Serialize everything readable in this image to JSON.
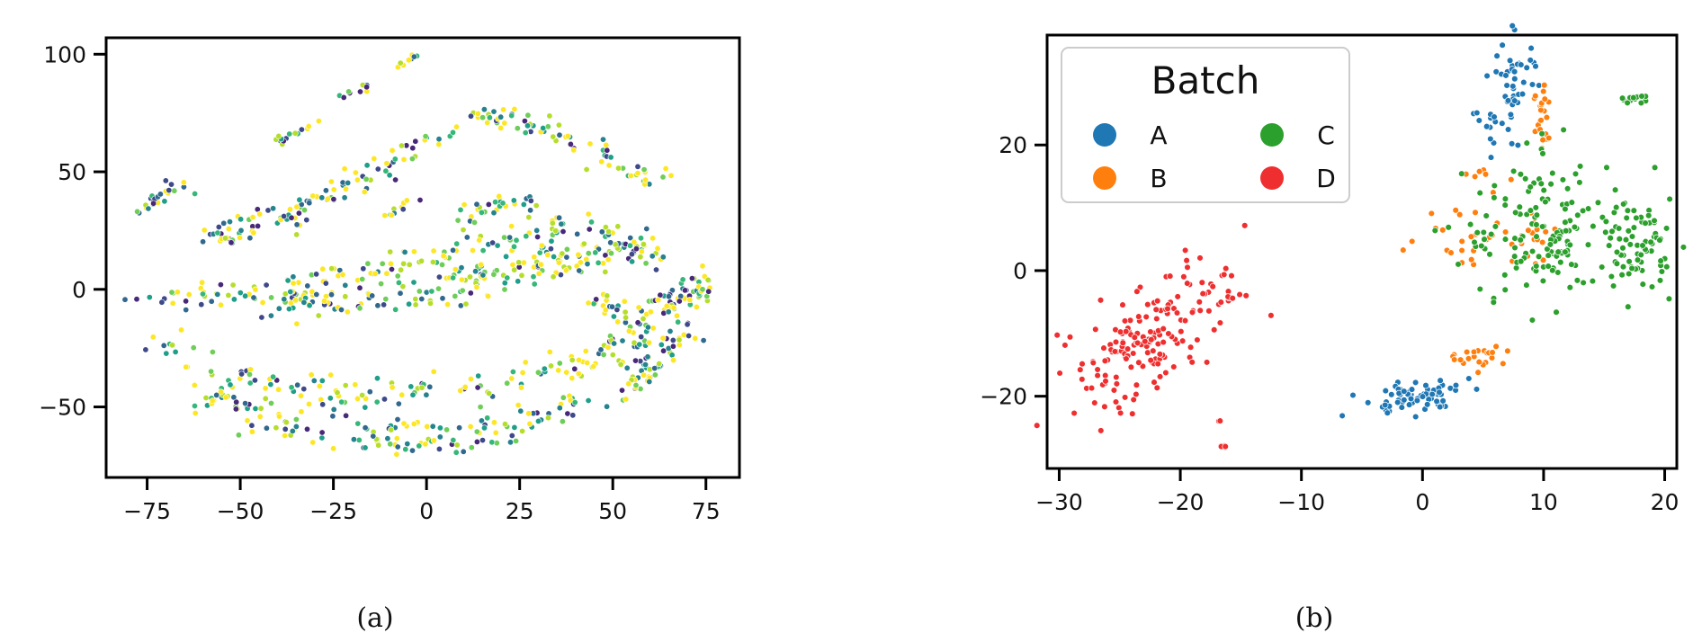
{
  "figure": {
    "captions": [
      "(a)",
      "(b)"
    ]
  },
  "chart_data": [
    {
      "type": "scatter",
      "panel": "a",
      "title": "",
      "xlabel": "",
      "ylabel": "",
      "xlim": [
        -86,
        84
      ],
      "ylim": [
        -80,
        107
      ],
      "xticks": [
        -75,
        -50,
        -25,
        0,
        25,
        50,
        75
      ],
      "yticks": [
        -50,
        0,
        50,
        100
      ],
      "grid": false,
      "legend": null,
      "colors": [
        "#fde725",
        "#b5de2b",
        "#6ece58",
        "#35b779",
        "#1f9e89",
        "#26828e",
        "#31688e",
        "#3e4989",
        "#482878"
      ],
      "point_count_note_shown": false,
      "bands": [
        {
          "path": [
            [
              -78,
              -5
            ],
            [
              -60,
              -2
            ],
            [
              -40,
              -3
            ],
            [
              -20,
              0
            ],
            [
              0,
              4
            ],
            [
              20,
              10
            ],
            [
              40,
              15
            ],
            [
              55,
              18
            ],
            [
              65,
              12
            ]
          ],
          "width": 8,
          "density": 160
        },
        {
          "path": [
            [
              -40,
              0
            ],
            [
              -20,
              6
            ],
            [
              0,
              14
            ],
            [
              20,
              22
            ],
            [
              40,
              26
            ],
            [
              50,
              25
            ]
          ],
          "width": 7,
          "density": 90
        },
        {
          "path": [
            [
              -40,
              -10
            ],
            [
              -20,
              -6
            ],
            [
              0,
              -4
            ],
            [
              20,
              2
            ],
            [
              38,
              10
            ],
            [
              55,
              20
            ],
            [
              62,
              24
            ]
          ],
          "width": 7,
          "density": 90
        },
        {
          "path": [
            [
              -62,
              20
            ],
            [
              -50,
              27
            ],
            [
              -35,
              34
            ],
            [
              -20,
              44
            ],
            [
              0,
              62
            ],
            [
              15,
              74
            ],
            [
              25,
              73
            ],
            [
              40,
              62
            ],
            [
              55,
              50
            ],
            [
              65,
              46
            ]
          ],
          "width": 6,
          "density": 140
        },
        {
          "path": [
            [
              -57,
              20
            ],
            [
              -48,
              24
            ],
            [
              -35,
              30
            ],
            [
              -28,
              38
            ],
            [
              -20,
              46
            ]
          ],
          "width": 6,
          "density": 40
        },
        {
          "path": [
            [
              -77,
              32
            ],
            [
              -70,
              42
            ],
            [
              -66,
              46
            ],
            [
              -63,
              42
            ]
          ],
          "width": 4,
          "density": 25
        },
        {
          "path": [
            [
              -40,
              63
            ],
            [
              -30,
              72
            ]
          ],
          "width": 3,
          "density": 14
        },
        {
          "path": [
            [
              -23,
              82
            ],
            [
              -15,
              87
            ]
          ],
          "width": 2,
          "density": 10
        },
        {
          "path": [
            [
              -8,
              95
            ],
            [
              -3,
              99
            ]
          ],
          "width": 2,
          "density": 8
        },
        {
          "path": [
            [
              -12,
              30
            ],
            [
              -2,
              40
            ]
          ],
          "width": 3,
          "density": 10
        },
        {
          "path": [
            [
              10,
              32
            ],
            [
              20,
              36
            ],
            [
              30,
              36
            ]
          ],
          "width": 5,
          "density": 30
        },
        {
          "path": [
            [
              -70,
              -25
            ],
            [
              -60,
              -35
            ],
            [
              -45,
              -40
            ],
            [
              -20,
              -44
            ],
            [
              0,
              -44
            ],
            [
              20,
              -40
            ],
            [
              40,
              -32
            ],
            [
              55,
              -20
            ],
            [
              65,
              -5
            ],
            [
              75,
              2
            ]
          ],
          "width": 8,
          "density": 160
        },
        {
          "path": [
            [
              -60,
              -45
            ],
            [
              -45,
              -53
            ],
            [
              -20,
              -58
            ],
            [
              0,
              -58
            ],
            [
              20,
              -55
            ],
            [
              35,
              -52
            ],
            [
              50,
              -42
            ],
            [
              62,
              -30
            ],
            [
              70,
              -15
            ]
          ],
          "width": 8,
          "density": 150
        },
        {
          "path": [
            [
              -35,
              -62
            ],
            [
              -10,
              -66
            ],
            [
              10,
              -66
            ],
            [
              25,
              -62
            ]
          ],
          "width": 5,
          "density": 40
        },
        {
          "path": [
            [
              45,
              -5
            ],
            [
              55,
              -15
            ],
            [
              60,
              -30
            ],
            [
              55,
              -45
            ]
          ],
          "width": 6,
          "density": 50
        },
        {
          "path": [
            [
              62,
              -10
            ],
            [
              70,
              0
            ],
            [
              75,
              5
            ]
          ],
          "width": 6,
          "density": 40
        }
      ]
    },
    {
      "type": "scatter",
      "panel": "b",
      "title": "",
      "xlabel": "",
      "ylabel": "",
      "xlim": [
        -31,
        21
      ],
      "ylim": [
        -31.5,
        37.5
      ],
      "xticks": [
        -30,
        -20,
        -10,
        0,
        10,
        20
      ],
      "yticks": [
        -20,
        0,
        20
      ],
      "grid": false,
      "legend": {
        "title": "Batch",
        "position": "top-left",
        "ncol": 2,
        "entries": [
          {
            "label": "A",
            "color": "#1f77b4"
          },
          {
            "label": "C",
            "color": "#2ca02c"
          },
          {
            "label": "B",
            "color": "#ff7f0e"
          },
          {
            "label": "D",
            "color": "#ef2f2f"
          }
        ]
      },
      "series": [
        {
          "name": "A",
          "color": "#1f77b4",
          "clusters": [
            {
              "cx": 7.5,
              "cy": 30,
              "sx": 1.0,
              "sy": 4.0,
              "n": 45
            },
            {
              "cx": 6.0,
              "cy": 23,
              "sx": 1.0,
              "sy": 1.5,
              "n": 12
            },
            {
              "cx": -0.5,
              "cy": -20,
              "sx": 2.3,
              "sy": 1.3,
              "n": 70,
              "tilt": 0.3
            }
          ]
        },
        {
          "name": "B",
          "color": "#ff7f0e",
          "clusters": [
            {
              "cx": 10,
              "cy": 24,
              "sx": 0.4,
              "sy": 4.0,
              "n": 25
            },
            {
              "cx": 4.5,
              "cy": 15.5,
              "sx": 0.8,
              "sy": 0.3,
              "n": 5
            },
            {
              "cx": 3.5,
              "cy": 6.0,
              "sx": 2.0,
              "sy": 2.5,
              "n": 25
            },
            {
              "cx": 9.0,
              "cy": 6.0,
              "sx": 1.5,
              "sy": 3.0,
              "n": 22
            },
            {
              "cx": 4.5,
              "cy": -13.5,
              "sx": 1.2,
              "sy": 0.8,
              "n": 22
            }
          ]
        },
        {
          "name": "C",
          "color": "#2ca02c",
          "clusters": [
            {
              "cx": 10.5,
              "cy": 6,
              "sx": 3.5,
              "sy": 6.0,
              "n": 150
            },
            {
              "cx": 18,
              "cy": 4,
              "sx": 1.3,
              "sy": 3.5,
              "n": 70
            },
            {
              "cx": 17.5,
              "cy": 27.5,
              "sx": 0.6,
              "sy": 0.4,
              "n": 14
            }
          ]
        },
        {
          "name": "D",
          "color": "#ef2f2f",
          "clusters": [
            {
              "cx": -23,
              "cy": -12,
              "sx": 2.8,
              "sy": 5.5,
              "n": 170,
              "tilt": 0.6
            },
            {
              "cx": -15.5,
              "cy": -4.0,
              "sx": 0.6,
              "sy": 0.4,
              "n": 8
            },
            {
              "cx": -16.5,
              "cy": -28,
              "sx": 0.2,
              "sy": 0.2,
              "n": 6
            },
            {
              "cx": -16.7,
              "cy": -24.0,
              "sx": 0.1,
              "sy": 0.1,
              "n": 2
            }
          ]
        }
      ]
    }
  ]
}
